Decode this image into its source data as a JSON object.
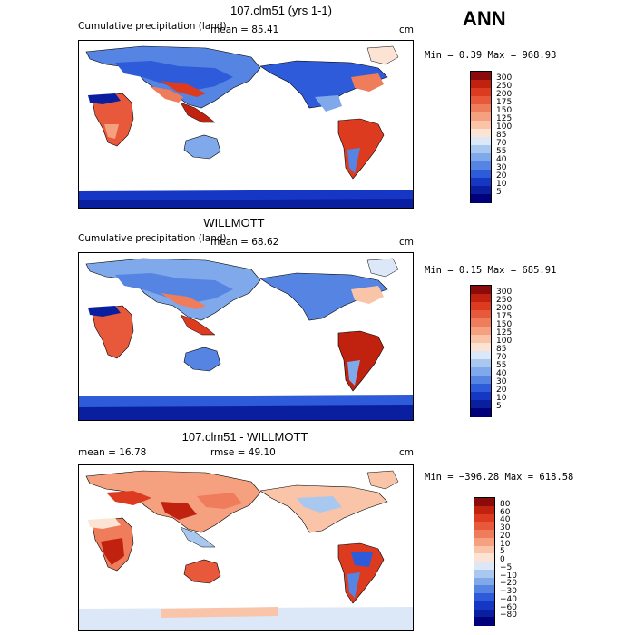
{
  "page": {
    "season": "ANN"
  },
  "panels": [
    {
      "title": "107.clm51 (yrs 1-1)",
      "subtitle": "Cumulative precipitation (land)",
      "stat1": "mean =  85.41",
      "stat2": "",
      "units": "cm",
      "minmax": "Min =    0.39 Max = 968.93",
      "levels": [
        "300",
        "250",
        "200",
        "175",
        "150",
        "125",
        "100",
        "85",
        "70",
        "55",
        "40",
        "30",
        "20",
        "10",
        "5"
      ],
      "colors": [
        "#8b0a0a",
        "#c0220f",
        "#dd3b20",
        "#e8583a",
        "#ef7d5b",
        "#f5a07f",
        "#f9c4a8",
        "#fde3d3",
        "#dce8f7",
        "#a9c8f0",
        "#7fa9ea",
        "#5584e3",
        "#2e5bd9",
        "#1637c4",
        "#0a1ea0",
        "#00007a"
      ]
    },
    {
      "title": "WILLMOTT",
      "subtitle": "Cumulative precipitation (land)",
      "stat1": "mean =  68.62",
      "stat2": "",
      "units": "cm",
      "minmax": "Min =    0.15 Max = 685.91",
      "levels": [
        "300",
        "250",
        "200",
        "175",
        "150",
        "125",
        "100",
        "85",
        "70",
        "55",
        "40",
        "30",
        "20",
        "10",
        "5"
      ],
      "colors": [
        "#8b0a0a",
        "#c0220f",
        "#dd3b20",
        "#e8583a",
        "#ef7d5b",
        "#f5a07f",
        "#f9c4a8",
        "#fde3d3",
        "#dce8f7",
        "#a9c8f0",
        "#7fa9ea",
        "#5584e3",
        "#2e5bd9",
        "#1637c4",
        "#0a1ea0",
        "#00007a"
      ]
    },
    {
      "title": "107.clm51 - WILLMOTT",
      "subtitle": "",
      "stat1": "mean =   16.78",
      "stat2": "rmse =   49.10",
      "units": "cm",
      "minmax": "Min = −396.28 Max = 618.58",
      "levels": [
        "80",
        "60",
        "40",
        "30",
        "20",
        "10",
        "5",
        "0",
        "−5",
        "−10",
        "−20",
        "−30",
        "−40",
        "−60",
        "−80"
      ],
      "colors": [
        "#8b0a0a",
        "#c0220f",
        "#dd3b20",
        "#e8583a",
        "#ef7d5b",
        "#f5a07f",
        "#f9c4a8",
        "#fde3d3",
        "#dce8f7",
        "#a9c8f0",
        "#7fa9ea",
        "#5584e3",
        "#2e5bd9",
        "#1637c4",
        "#0a1ea0",
        "#00007a"
      ]
    }
  ],
  "chart_data": [
    {
      "type": "heatmap",
      "title": "107.clm51 (yrs 1-1)",
      "subtitle": "Cumulative precipitation (land)",
      "units": "cm",
      "mean": 85.41,
      "min": 0.39,
      "max": 968.93,
      "contour_levels": [
        5,
        10,
        20,
        30,
        40,
        55,
        70,
        85,
        100,
        125,
        150,
        175,
        200,
        250,
        300
      ]
    },
    {
      "type": "heatmap",
      "title": "WILLMOTT",
      "subtitle": "Cumulative precipitation (land)",
      "units": "cm",
      "mean": 68.62,
      "min": 0.15,
      "max": 685.91,
      "contour_levels": [
        5,
        10,
        20,
        30,
        40,
        55,
        70,
        85,
        100,
        125,
        150,
        175,
        200,
        250,
        300
      ]
    },
    {
      "type": "heatmap",
      "title": "107.clm51 - WILLMOTT",
      "units": "cm",
      "mean": 16.78,
      "rmse": 49.1,
      "min": -396.28,
      "max": 618.58,
      "contour_levels": [
        -80,
        -60,
        -40,
        -30,
        -20,
        -10,
        -5,
        0,
        5,
        10,
        20,
        30,
        40,
        60,
        80
      ]
    }
  ]
}
